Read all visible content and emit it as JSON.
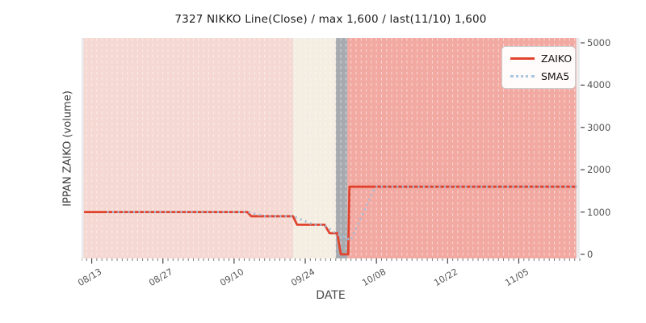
{
  "chart_data": {
    "type": "line",
    "title": "7327 NIKKO Line(Close) / max 1,600 / last(11/10) 1,600",
    "xlabel": "DATE",
    "ylabel": "IPPAN ZAIKO (volume)",
    "x_axis": {
      "unit": "days",
      "days_total": 98,
      "tick_labels": [
        "08/13",
        "08/27",
        "09/10",
        "09/24",
        "10/08",
        "10/22",
        "11/05"
      ],
      "tick_days": [
        2,
        16,
        30,
        44,
        58,
        72,
        86
      ],
      "minor_tick_every_days": 1
    },
    "y_axis": {
      "side": "right",
      "min": 0,
      "max": 5000,
      "ticks": [
        0,
        1000,
        2000,
        3000,
        4000,
        5000
      ]
    },
    "series": [
      {
        "name": "ZAIKO",
        "style": "solid",
        "color": "#e0432d",
        "points": [
          [
            0.5,
            1000
          ],
          [
            32.6,
            1000
          ],
          [
            33.4,
            900
          ],
          [
            41.6,
            900
          ],
          [
            42.4,
            700
          ],
          [
            47.8,
            700
          ],
          [
            48.8,
            500
          ],
          [
            50.3,
            500
          ],
          [
            51.0,
            0
          ],
          [
            52.45,
            0
          ],
          [
            52.7,
            1600
          ],
          [
            97.4,
            1600
          ]
        ]
      },
      {
        "name": "SMA5",
        "style": "dotted",
        "color": "#9fbcd8",
        "points": [
          [
            5,
            1000
          ],
          [
            32.6,
            1000
          ],
          [
            36.2,
            900
          ],
          [
            41.6,
            900
          ],
          [
            45.6,
            700
          ],
          [
            47.6,
            700
          ],
          [
            50.2,
            480
          ],
          [
            51.6,
            420
          ],
          [
            52.9,
            330
          ],
          [
            57.8,
            1600
          ],
          [
            97.4,
            1600
          ]
        ]
      }
    ],
    "bands": [
      {
        "from": 0.4,
        "to": 41.6,
        "color": "#f5d8d2"
      },
      {
        "from": 41.6,
        "to": 50.0,
        "color": "#f3ede2"
      },
      {
        "from": 50.0,
        "to": 52.3,
        "color": "#a7abb0"
      },
      {
        "from": 52.3,
        "to": 97.3,
        "color": "#f2a9a2"
      }
    ],
    "grid": {
      "vertical_daily_lines": true,
      "color": "#ffffff",
      "dashed": true
    },
    "legend": {
      "position": "upper right",
      "entries": [
        {
          "label": "ZAIKO",
          "style": "solid",
          "color": "#e0432d"
        },
        {
          "label": "SMA5",
          "style": "dotted",
          "color": "#a9c6e0"
        }
      ]
    },
    "colors": {
      "figure_bg": "#ffffff",
      "plot_bg": "#eaebec",
      "tick_color": "#555555",
      "title_color": "#1c1c1c"
    }
  }
}
